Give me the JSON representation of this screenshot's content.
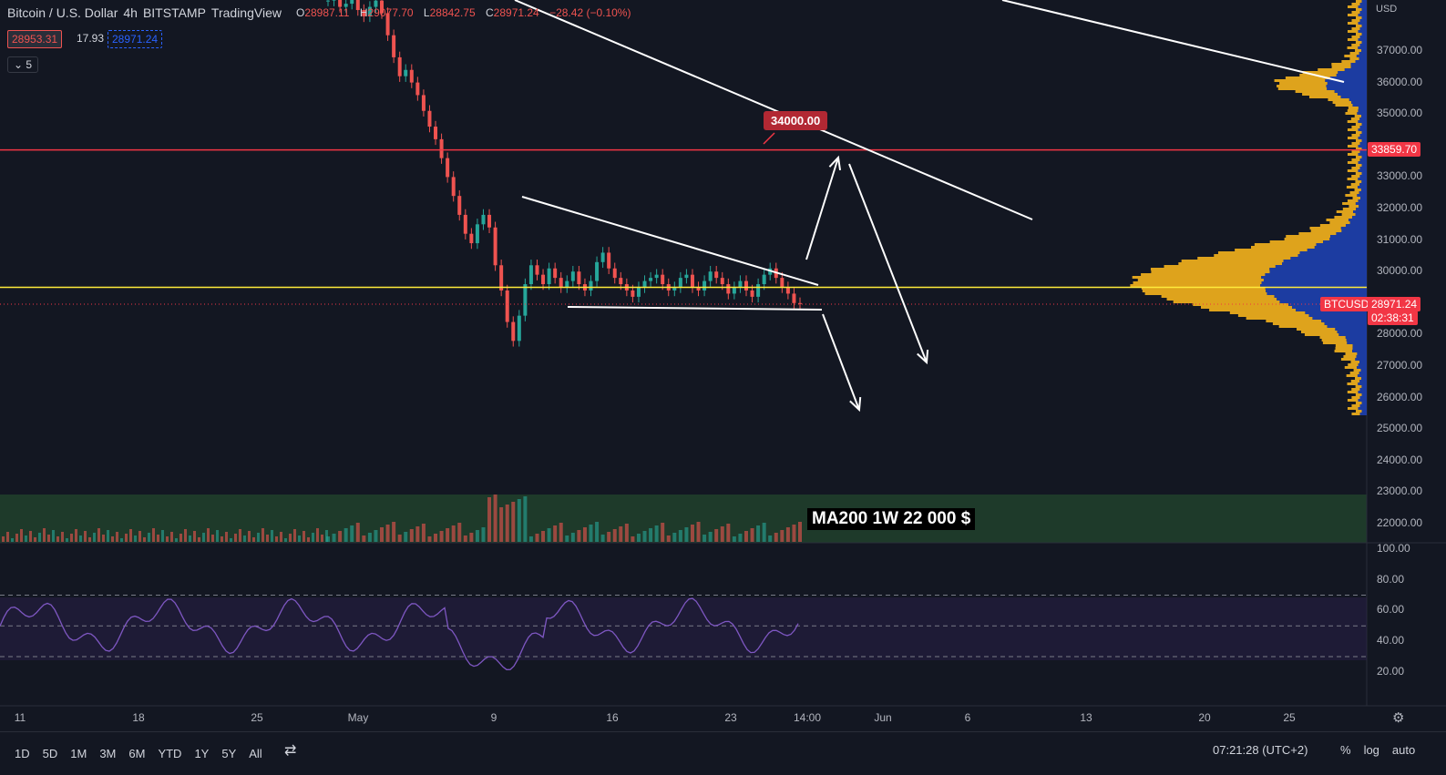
{
  "header": {
    "symbol": "Bitcoin / U.S. Dollar",
    "interval": "4h",
    "exchange": "BITSTAMP",
    "brand": "TradingView",
    "ohlc": {
      "o_label": "O",
      "o": "28987.11",
      "h_label": "H",
      "h": "29077.70",
      "l_label": "L",
      "l": "28842.75",
      "c_label": "C",
      "c": "28971.24",
      "change": "−28.42 (−0.10%)"
    },
    "bid": "28953.31",
    "spread": "17.93",
    "ask": "28971.24",
    "indicators_count": "5"
  },
  "price_axis": {
    "currency": "USD",
    "labels": [
      "37000.00",
      "36000.00",
      "35000.00",
      "33000.00",
      "32000.00",
      "31000.00",
      "30000.00",
      "28000.00",
      "27000.00",
      "26000.00",
      "25000.00",
      "24000.00",
      "23000.00",
      "22000.00"
    ],
    "tags": {
      "level": "33859.70",
      "symbol": "BTCUSD",
      "price": "28971.24",
      "countdown": "02:38:31"
    }
  },
  "rsi_axis": {
    "labels": [
      "100.00",
      "80.00",
      "60.00",
      "40.00",
      "20.00"
    ]
  },
  "time_axis": {
    "labels": [
      "11",
      "18",
      "25",
      "May",
      "9",
      "16",
      "23",
      "14:00",
      "Jun",
      "6",
      "13",
      "20",
      "25"
    ]
  },
  "annotations": {
    "target_note": "34000.00",
    "ma_note": "MA200 1W 22 000 $"
  },
  "bottom_bar": {
    "timeframes": [
      "1D",
      "5D",
      "1M",
      "3M",
      "6M",
      "YTD",
      "1Y",
      "5Y",
      "All"
    ],
    "clock": "07:21:28 (UTC+2)",
    "percent": "%",
    "log": "log",
    "auto": "auto"
  },
  "colors": {
    "background": "#131722",
    "up": "#26a69a",
    "down": "#ef5350",
    "resistance": "#f23645",
    "support": "#ffeb3b",
    "volume_profile_up": "#f5b31c",
    "volume_profile_down": "#1e40af",
    "ma_zone": "#1e3a2a",
    "rsi": "#7e57c2"
  },
  "chart_data": {
    "type": "candlestick",
    "symbol": "BTCUSD",
    "timeframe": "4h",
    "price_range": [
      25000,
      37500
    ],
    "horizontal_levels": [
      {
        "price": 33859.7,
        "color": "#f23645"
      },
      {
        "price": 29500,
        "color": "#ffeb3b"
      }
    ],
    "closes": [
      38600,
      38700,
      38400,
      38500,
      38800,
      38300,
      38100,
      38400,
      38600,
      38200,
      37500,
      36800,
      36200,
      36400,
      36000,
      35600,
      35100,
      34600,
      34200,
      33600,
      33000,
      32400,
      31800,
      31200,
      30900,
      31500,
      31800,
      31400,
      30200,
      29400,
      28400,
      27800,
      28600,
      29600,
      30200,
      29900,
      29600,
      30100,
      29800,
      29500,
      29700,
      30000,
      29600,
      29400,
      29700,
      30300,
      30600,
      30100,
      29800,
      29600,
      29400,
      29200,
      29500,
      29700,
      29800,
      29900,
      29600,
      29400,
      29500,
      29800,
      29900,
      29500,
      29400,
      29700,
      30000,
      29800,
      29600,
      29300,
      29500,
      29700,
      29400,
      29200,
      29600,
      29900,
      30100,
      29800,
      29500,
      29300,
      29000,
      28971
    ],
    "rsi_levels": [
      70,
      50,
      30
    ],
    "rsi_range": [
      0,
      100
    ]
  }
}
